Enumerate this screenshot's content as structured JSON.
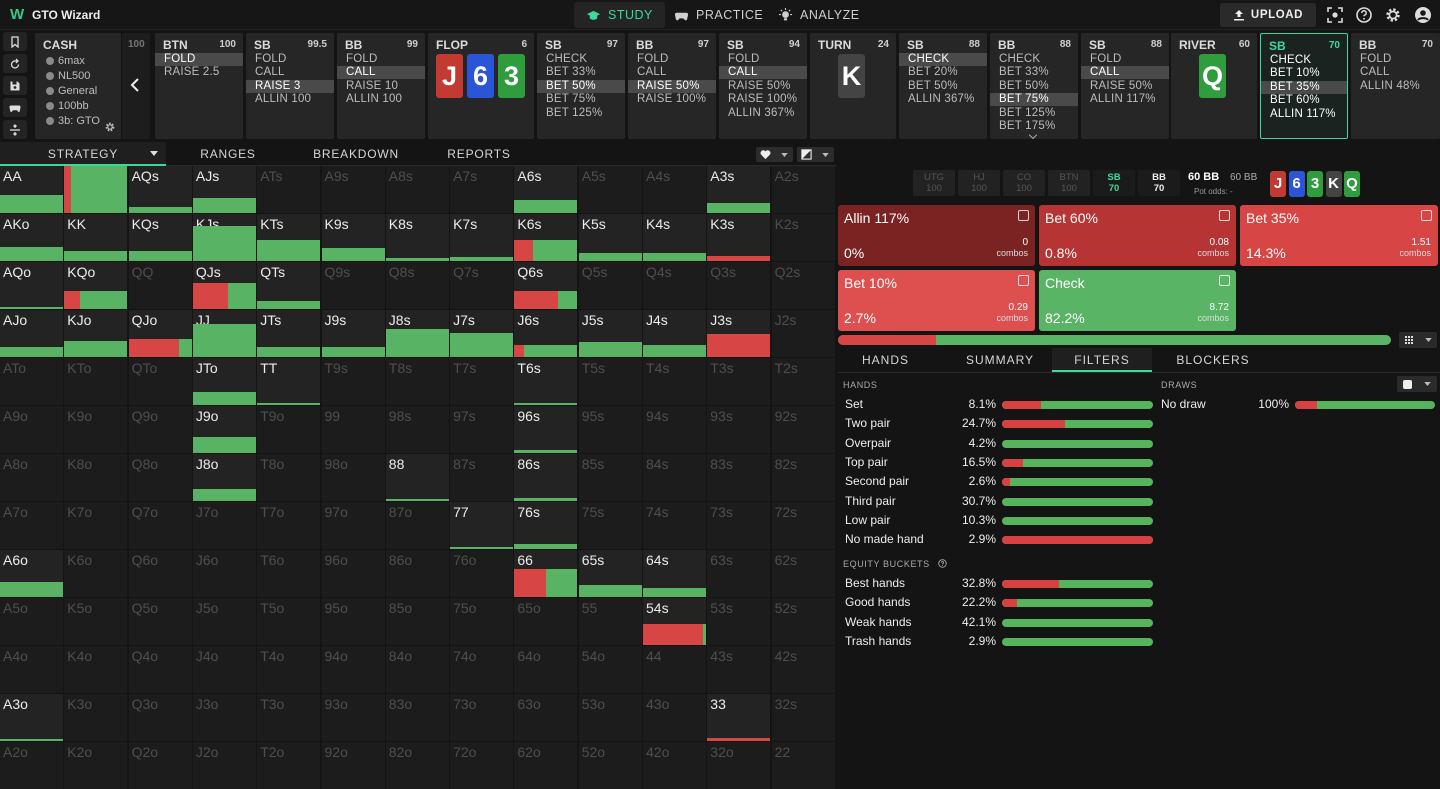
{
  "app": {
    "title": "GTO Wizard",
    "nav": [
      {
        "label": "STUDY",
        "icon": "graduation-cap-icon",
        "active": true
      },
      {
        "label": "PRACTICE",
        "icon": "gamepad-icon",
        "active": false
      },
      {
        "label": "ANALYZE",
        "icon": "lightbulb-icon",
        "active": false
      }
    ],
    "upload_label": "UPLOAD"
  },
  "colors": {
    "fold": "#5ab4e5",
    "check": "#58b364",
    "bet": "#d84545",
    "accent": "#3ed99a"
  },
  "cash": {
    "title": "CASH",
    "lines": [
      "6max",
      "NL500",
      "General",
      "100bb",
      "3b: GTO"
    ],
    "prev_stub": "100"
  },
  "columns": [
    {
      "pos": "BTN",
      "stack": "100",
      "options": [
        "FOLD",
        "RAISE 2.5"
      ],
      "sel": 0
    },
    {
      "pos": "SB",
      "stack": "99.5",
      "options": [
        "FOLD",
        "CALL",
        "RAISE 3",
        "ALLIN 100"
      ],
      "sel": 2
    },
    {
      "pos": "BB",
      "stack": "99",
      "options": [
        "FOLD",
        "CALL",
        "RAISE 10",
        "ALLIN 100"
      ],
      "sel": 1
    },
    {
      "street": "FLOP",
      "pot": "6",
      "cards": [
        "J",
        "6",
        "3"
      ]
    },
    {
      "pos": "SB",
      "stack": "97",
      "options": [
        "CHECK",
        "BET 33%",
        "BET 50%",
        "BET 75%",
        "BET 125%"
      ],
      "sel": 2
    },
    {
      "pos": "BB",
      "stack": "97",
      "options": [
        "FOLD",
        "CALL",
        "RAISE 50%",
        "RAISE 100%"
      ],
      "sel": 2
    },
    {
      "pos": "SB",
      "stack": "94",
      "options": [
        "FOLD",
        "CALL",
        "RAISE 50%",
        "RAISE 100%",
        "ALLIN 367%"
      ],
      "sel": 1
    },
    {
      "street": "TURN",
      "pot": "24",
      "cards": [
        "K"
      ]
    },
    {
      "pos": "SB",
      "stack": "88",
      "options": [
        "CHECK",
        "BET 20%",
        "BET 50%",
        "ALLIN 367%"
      ],
      "sel": 0
    },
    {
      "pos": "BB",
      "stack": "88",
      "options": [
        "CHECK",
        "BET 33%",
        "BET 50%",
        "BET 75%",
        "BET 125%",
        "BET 175%"
      ],
      "sel": 3
    },
    {
      "pos": "SB",
      "stack": "88",
      "options": [
        "FOLD",
        "CALL",
        "RAISE 50%",
        "ALLIN 117%"
      ],
      "sel": 1
    },
    {
      "street": "RIVER",
      "pot": "60",
      "cards": [
        "Q"
      ]
    },
    {
      "pos": "SB",
      "stack": "70",
      "options": [
        "CHECK",
        "BET 10%",
        "BET 35%",
        "BET 60%",
        "ALLIN 117%"
      ],
      "sel": 2,
      "active": true
    },
    {
      "pos": "BB",
      "stack": "70",
      "options": [
        "FOLD",
        "CALL",
        "ALLIN 48%"
      ],
      "sel": -1
    }
  ],
  "tabs": [
    "STRATEGY",
    "RANGES",
    "BREAKDOWN",
    "REPORTS"
  ],
  "grid": {
    "rows": [
      [
        "AA",
        "AKs",
        "AQs",
        "AJs",
        "ATs",
        "A9s",
        "A8s",
        "A7s",
        "A6s",
        "A5s",
        "A4s",
        "A3s",
        "A2s"
      ],
      [
        "AKo",
        "KK",
        "KQs",
        "KJs",
        "KTs",
        "K9s",
        "K8s",
        "K7s",
        "K6s",
        "K5s",
        "K4s",
        "K3s",
        "K2s"
      ],
      [
        "AQo",
        "KQo",
        "QQ",
        "QJs",
        "QTs",
        "Q9s",
        "Q8s",
        "Q7s",
        "Q6s",
        "Q5s",
        "Q4s",
        "Q3s",
        "Q2s"
      ],
      [
        "AJo",
        "KJo",
        "QJo",
        "JJ",
        "JTs",
        "J9s",
        "J8s",
        "J7s",
        "J6s",
        "J5s",
        "J4s",
        "J3s",
        "J2s"
      ],
      [
        "ATo",
        "KTo",
        "QTo",
        "JTo",
        "TT",
        "T9s",
        "T8s",
        "T7s",
        "T6s",
        "T5s",
        "T4s",
        "T3s",
        "T2s"
      ],
      [
        "A9o",
        "K9o",
        "Q9o",
        "J9o",
        "T9o",
        "99",
        "98s",
        "97s",
        "96s",
        "95s",
        "94s",
        "93s",
        "92s"
      ],
      [
        "A8o",
        "K8o",
        "Q8o",
        "J8o",
        "T8o",
        "98o",
        "88",
        "87s",
        "86s",
        "85s",
        "84s",
        "83s",
        "82s"
      ],
      [
        "A7o",
        "K7o",
        "Q7o",
        "J7o",
        "T7o",
        "97o",
        "87o",
        "77",
        "76s",
        "75s",
        "74s",
        "73s",
        "72s"
      ],
      [
        "A6o",
        "K6o",
        "Q6o",
        "J6o",
        "T6o",
        "96o",
        "86o",
        "76o",
        "66",
        "65s",
        "64s",
        "63s",
        "62s"
      ],
      [
        "A5o",
        "K5o",
        "Q5o",
        "J5o",
        "T5o",
        "95o",
        "85o",
        "75o",
        "65o",
        "55",
        "54s",
        "53s",
        "52s"
      ],
      [
        "A4o",
        "K4o",
        "Q4o",
        "J4o",
        "T4o",
        "94o",
        "84o",
        "74o",
        "64o",
        "54o",
        "44",
        "43s",
        "42s"
      ],
      [
        "A3o",
        "K3o",
        "Q3o",
        "J3o",
        "T3o",
        "93o",
        "83o",
        "73o",
        "63o",
        "53o",
        "43o",
        "33",
        "32s"
      ],
      [
        "A2o",
        "K2o",
        "Q2o",
        "J2o",
        "T2o",
        "92o",
        "82o",
        "72o",
        "62o",
        "52o",
        "42o",
        "32o",
        "22"
      ]
    ],
    "active": [
      "AA",
      "AKs",
      "AQs",
      "AJs",
      "A6s",
      "A3s",
      "AKo",
      "KK",
      "KQs",
      "KJs",
      "KTs",
      "K9s",
      "K8s",
      "K7s",
      "K6s",
      "K5s",
      "K4s",
      "K3s",
      "AQo",
      "KQo",
      "QJs",
      "QTs",
      "Q6s",
      "AJo",
      "KJo",
      "QJo",
      "JJ",
      "JTs",
      "J9s",
      "J8s",
      "J7s",
      "J6s",
      "J5s",
      "J4s",
      "J3s",
      "JTo",
      "TT",
      "T6s",
      "J9o",
      "96s",
      "J8o",
      "88",
      "86s",
      "77",
      "76s",
      "A6o",
      "66",
      "65s",
      "64s",
      "54s",
      "A3o",
      "33"
    ],
    "freqs": {
      "AA": [
        0.38,
        0
      ],
      "AKs": [
        1,
        0.1
      ],
      "AQs": [
        0.12,
        0
      ],
      "AJs": [
        0.32,
        0
      ],
      "A6s": [
        0.28,
        0
      ],
      "A3s": [
        0.22,
        0
      ],
      "AKo": [
        0.3,
        0
      ],
      "KK": [
        0.22,
        0
      ],
      "KQs": [
        0.22,
        0
      ],
      "KJs": [
        0.75,
        0
      ],
      "KTs": [
        0.45,
        0
      ],
      "K9s": [
        0.28,
        0
      ],
      "K8s": [
        0.06,
        0
      ],
      "K7s": [
        0.08,
        0
      ],
      "K6s": [
        0.45,
        0.3
      ],
      "K5s": [
        0.18,
        0
      ],
      "K4s": [
        0.18,
        0
      ],
      "K3s": [
        0.1,
        1
      ],
      "AQo": [
        0.05,
        0
      ],
      "KQo": [
        0.38,
        0.25
      ],
      "QJs": [
        0.55,
        0.55
      ],
      "QTs": [
        0.18,
        0
      ],
      "Q6s": [
        0.38,
        0.7
      ],
      "AJo": [
        0.22,
        0
      ],
      "KJo": [
        0.35,
        0
      ],
      "QJo": [
        0.38,
        0.8
      ],
      "JJ": [
        0.7,
        0
      ],
      "JTs": [
        0.22,
        0
      ],
      "J9s": [
        0.22,
        0
      ],
      "J8s": [
        0.6,
        0
      ],
      "J7s": [
        0.52,
        0
      ],
      "J6s": [
        0.25,
        0.15
      ],
      "J5s": [
        0.32,
        0
      ],
      "J4s": [
        0.25,
        0
      ],
      "J3s": [
        0.5,
        1
      ],
      "JTo": [
        0.28,
        0
      ],
      "TT": [
        0.04,
        0
      ],
      "T6s": [
        0.04,
        0
      ],
      "J9o": [
        0.35,
        0
      ],
      "96s": [
        0.06,
        0
      ],
      "J8o": [
        0.25,
        0
      ],
      "88": [
        0.04,
        0
      ],
      "86s": [
        0.06,
        0
      ],
      "77": [
        0.04,
        0
      ],
      "76s": [
        0.1,
        0
      ],
      "A6o": [
        0.33,
        0
      ],
      "66": [
        0.6,
        0.5
      ],
      "65s": [
        0.25,
        0
      ],
      "64s": [
        0.2,
        0
      ],
      "54s": [
        0.45,
        0.95
      ],
      "A3o": [
        0.04,
        0
      ],
      "33": [
        0.06,
        1
      ]
    }
  },
  "seats": [
    {
      "pos": "UTG",
      "stack": "100",
      "on": false
    },
    {
      "pos": "HJ",
      "stack": "100",
      "on": false
    },
    {
      "pos": "CO",
      "stack": "100",
      "on": false
    },
    {
      "pos": "BTN",
      "stack": "100",
      "on": false
    },
    {
      "pos": "SB",
      "stack": "70",
      "on": true,
      "highlight": true
    },
    {
      "pos": "BB",
      "stack": "70",
      "on": true
    }
  ],
  "pot": {
    "total": "60 BB",
    "sub": "60 BB",
    "odds_label": "Pot odds:",
    "odds_value": "-"
  },
  "board": [
    {
      "r": "J",
      "c": "#c33a33"
    },
    {
      "r": "6",
      "c": "#2a55d6"
    },
    {
      "r": "3",
      "c": "#2f9c3e"
    },
    {
      "r": "K",
      "c": "#444"
    },
    {
      "r": "Q",
      "c": "#2f9c3e"
    }
  ],
  "actions": [
    {
      "label": "Allin 117%",
      "pct": "0%",
      "combos": "0",
      "combos_label": "combos",
      "color": "#7b2323"
    },
    {
      "label": "Bet 60%",
      "pct": "0.8%",
      "combos": "0.08",
      "combos_label": "combos",
      "color": "#b73434"
    },
    {
      "label": "Bet 35%",
      "pct": "14.3%",
      "combos": "1.51",
      "combos_label": "combos",
      "color": "#d84545"
    },
    {
      "label": "Bet 10%",
      "pct": "2.7%",
      "combos": "0.29",
      "combos_label": "combos",
      "color": "#de5050"
    },
    {
      "label": "Check",
      "pct": "82.2%",
      "combos": "8.72",
      "combos_label": "combos",
      "color": "#5ab465"
    }
  ],
  "dist_bar": {
    "allin": 0.0,
    "bet60": 0.008,
    "bet35": 0.143,
    "bet10": 0.027,
    "check": 0.822
  },
  "rtabs": [
    "HANDS",
    "SUMMARY",
    "FILTERS",
    "BLOCKERS"
  ],
  "filters": {
    "hands_title": "HANDS",
    "hands": [
      {
        "name": "Set",
        "pct": "8.1%",
        "red": 0.26
      },
      {
        "name": "Two pair",
        "pct": "24.7%",
        "red": 0.42
      },
      {
        "name": "Overpair",
        "pct": "4.2%",
        "red": 0
      },
      {
        "name": "Top pair",
        "pct": "16.5%",
        "red": 0.14
      },
      {
        "name": "Second pair",
        "pct": "2.6%",
        "red": 0.05
      },
      {
        "name": "Third pair",
        "pct": "30.7%",
        "red": 0
      },
      {
        "name": "Low pair",
        "pct": "10.3%",
        "red": 0
      },
      {
        "name": "No made hand",
        "pct": "2.9%",
        "red": 1
      }
    ],
    "equity_title": "EQUITY BUCKETS",
    "equity": [
      {
        "name": "Best hands",
        "pct": "32.8%",
        "red": 0.38
      },
      {
        "name": "Good hands",
        "pct": "22.2%",
        "red": 0.1
      },
      {
        "name": "Weak hands",
        "pct": "42.1%",
        "red": 0
      },
      {
        "name": "Trash hands",
        "pct": "2.9%",
        "red": 0
      }
    ],
    "draws_title": "DRAWS",
    "draws": [
      {
        "name": "No draw",
        "pct": "100%",
        "red": 0.16
      }
    ]
  }
}
